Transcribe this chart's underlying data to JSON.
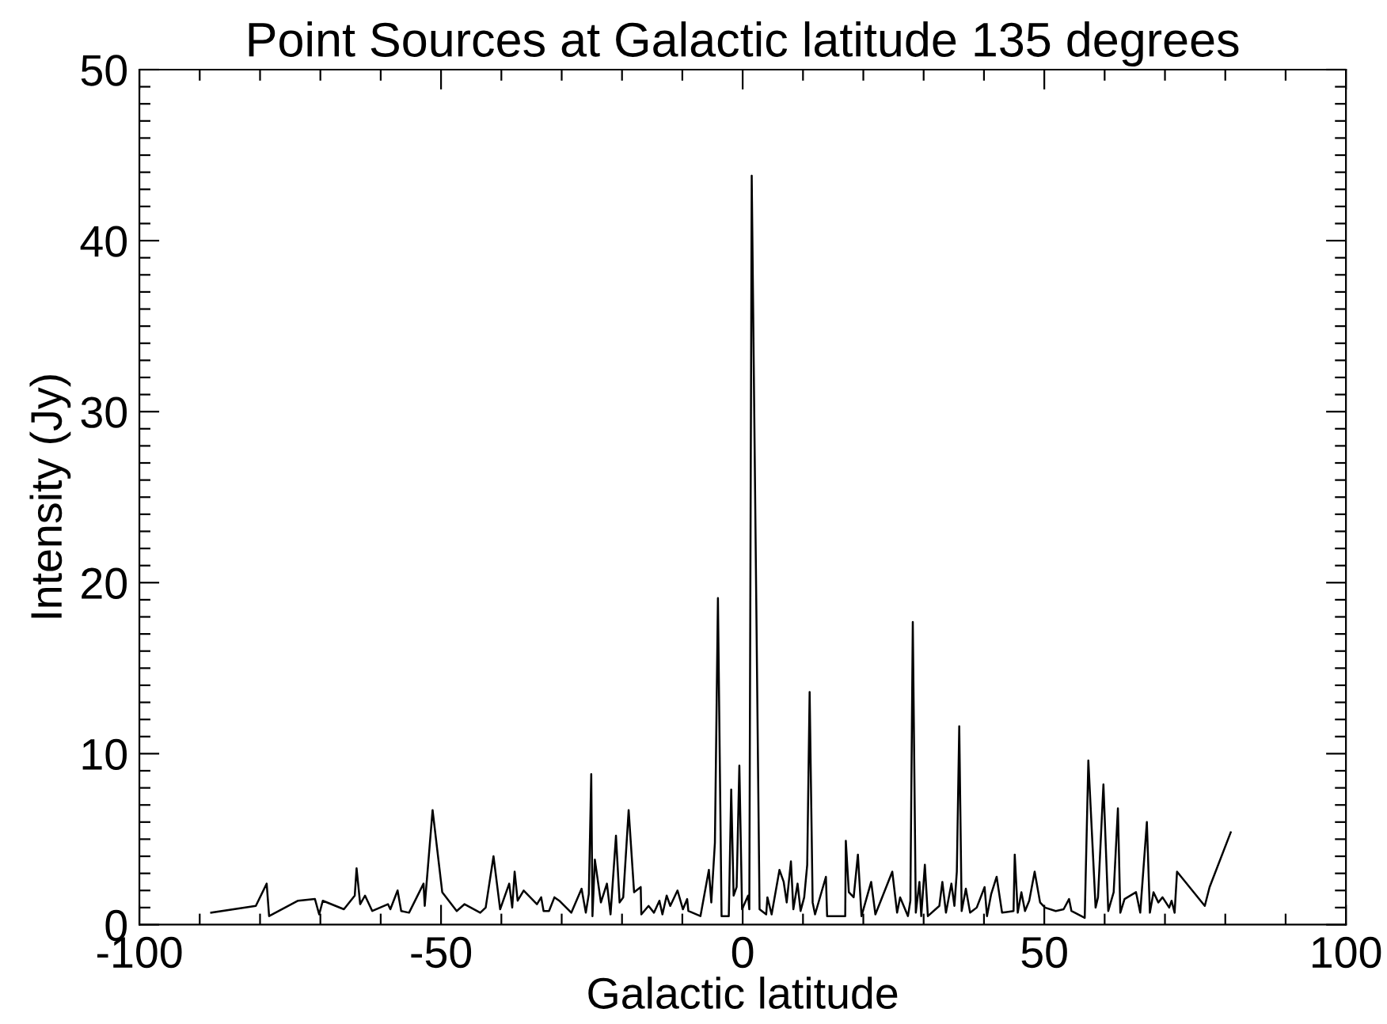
{
  "chart_data": {
    "type": "line",
    "title": "Point Sources at Galactic latitude 135 degrees",
    "xlabel": "Galactic latitude",
    "ylabel": "Intensity (Jy)",
    "xlim": [
      -100,
      100
    ],
    "ylim": [
      0,
      50
    ],
    "xticks": [
      -100,
      -50,
      0,
      50,
      100
    ],
    "yticks": [
      0,
      10,
      20,
      30,
      40,
      50
    ],
    "grid": false,
    "legend": false,
    "marker": "none",
    "line_style": "solid",
    "series": [
      {
        "color": "#000000",
        "x": [
          -88.1,
          -80.7,
          -78.9,
          -78.5,
          -73.7,
          -70.9,
          -70.2,
          -69.6,
          -66.1,
          -64.3,
          -64.0,
          -63.4,
          -62.6,
          -61.4,
          -58.8,
          -58.4,
          -57.2,
          -56.6,
          -55.3,
          -52.9,
          -52.7,
          -51.4,
          -49.8,
          -47.4,
          -46.1,
          -43.5,
          -42.6,
          -41.3,
          -40.2,
          -38.7,
          -38.2,
          -37.8,
          -37.3,
          -36.3,
          -34.1,
          -33.4,
          -33.0,
          -32.1,
          -31.2,
          -30.4,
          -28.4,
          -26.7,
          -26.0,
          -25.5,
          -25.1,
          -24.9,
          -24.5,
          -23.5,
          -22.5,
          -21.9,
          -21.0,
          -20.4,
          -19.8,
          -18.9,
          -18.0,
          -16.9,
          -16.8,
          -15.6,
          -14.7,
          -13.8,
          -13.3,
          -12.6,
          -12.0,
          -10.8,
          -9.9,
          -9.2,
          -9.0,
          -7.0,
          -5.6,
          -5.2,
          -4.6,
          -4.1,
          -3.5,
          -2.3,
          -1.9,
          -1.5,
          -1.0,
          -0.55,
          -0.1,
          0.9,
          1.1,
          1.5,
          2.8,
          3.9,
          4.1,
          4.8,
          6.1,
          6.8,
          7.3,
          8.0,
          8.4,
          9.1,
          9.6,
          10.2,
          10.7,
          11.1,
          11.6,
          12.0,
          13.8,
          14.0,
          17.0,
          17.1,
          17.6,
          18.4,
          19.1,
          19.7,
          21.3,
          22.0,
          24.8,
          25.6,
          26.1,
          27.4,
          27.8,
          28.2,
          28.7,
          29.3,
          29.6,
          30.2,
          30.7,
          32.6,
          33.1,
          33.7,
          34.6,
          35.1,
          35.5,
          35.9,
          36.3,
          37.0,
          37.7,
          38.8,
          40.1,
          40.5,
          41.2,
          42.1,
          43.0,
          44.9,
          45.1,
          45.6,
          46.2,
          46.8,
          47.5,
          48.4,
          49.3,
          50.1,
          51.9,
          53.2,
          54.1,
          54.5,
          56.7,
          57.3,
          58.5,
          58.9,
          59.8,
          60.6,
          61.5,
          62.2,
          62.6,
          63.3,
          65.2,
          65.9,
          67.0,
          67.5,
          68.1,
          68.9,
          69.6,
          70.7,
          71.1,
          71.6,
          72.0,
          76.6,
          77.4,
          80.9
        ],
        "values": [
          0.7,
          1.1,
          2.4,
          0.5,
          1.4,
          1.5,
          0.6,
          1.4,
          0.9,
          1.7,
          3.3,
          1.2,
          1.7,
          0.8,
          1.2,
          0.9,
          2.0,
          0.8,
          0.7,
          2.4,
          1.1,
          6.7,
          1.9,
          0.8,
          1.2,
          0.7,
          1.0,
          4.0,
          0.9,
          2.4,
          1.0,
          3.1,
          1.4,
          2.0,
          1.2,
          1.6,
          0.8,
          0.8,
          1.6,
          1.4,
          0.7,
          2.1,
          0.7,
          1.8,
          8.8,
          0.5,
          3.8,
          1.3,
          2.4,
          0.6,
          5.2,
          1.3,
          1.6,
          6.7,
          1.9,
          2.2,
          0.6,
          1.1,
          0.7,
          1.4,
          0.6,
          1.7,
          1.1,
          2.0,
          0.9,
          1.5,
          0.8,
          0.5,
          3.2,
          1.3,
          4.8,
          19.1,
          0.5,
          0.5,
          7.9,
          1.7,
          2.2,
          9.3,
          0.9,
          1.7,
          0.9,
          43.8,
          0.9,
          0.6,
          1.6,
          0.6,
          3.2,
          2.5,
          1.3,
          3.7,
          0.9,
          2.4,
          0.8,
          1.6,
          3.5,
          13.6,
          1.3,
          0.6,
          2.8,
          0.5,
          0.5,
          4.9,
          1.9,
          1.6,
          4.1,
          0.5,
          2.5,
          0.6,
          3.1,
          0.7,
          1.6,
          0.5,
          1.4,
          17.7,
          0.7,
          2.5,
          0.5,
          3.5,
          0.5,
          1.1,
          2.5,
          0.7,
          2.4,
          1.1,
          3.1,
          11.6,
          0.8,
          2.1,
          0.7,
          1.0,
          2.2,
          0.5,
          1.8,
          2.8,
          0.7,
          0.8,
          4.1,
          0.7,
          1.9,
          0.8,
          1.4,
          3.1,
          1.3,
          1.0,
          0.8,
          0.9,
          1.5,
          0.8,
          0.4,
          9.6,
          1.0,
          1.6,
          8.2,
          0.8,
          1.9,
          6.8,
          0.7,
          1.5,
          1.9,
          0.7,
          6.0,
          0.7,
          1.9,
          1.3,
          1.6,
          1.0,
          1.4,
          0.7,
          3.1,
          1.1,
          2.2,
          5.4
        ]
      }
    ]
  }
}
